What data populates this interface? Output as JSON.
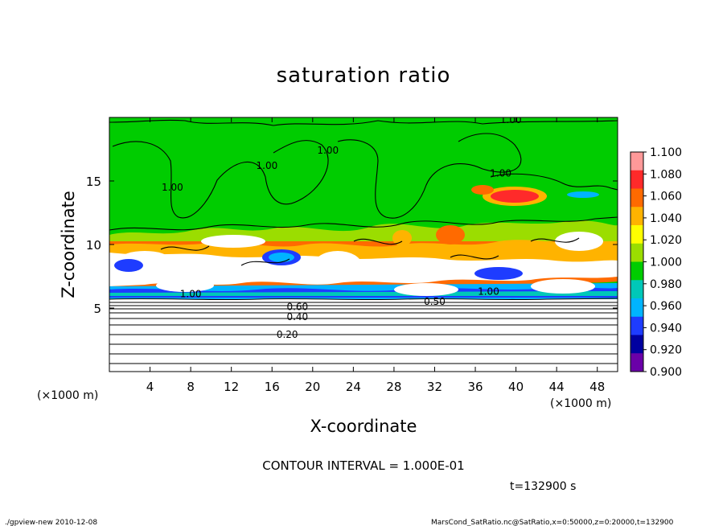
{
  "chart_data": {
    "type": "heatmap",
    "title": "saturation ratio",
    "xlabel": "X-coordinate",
    "ylabel": "Z-coordinate",
    "x_unit": "(×1000 m)",
    "y_unit": "(×1000 m)",
    "xlim": [
      0,
      50
    ],
    "ylim": [
      0,
      20
    ],
    "xticks": [
      4,
      8,
      12,
      16,
      20,
      24,
      28,
      32,
      36,
      40,
      44,
      48
    ],
    "yticks": [
      5,
      10,
      15
    ],
    "contour_interval_text": "CONTOUR INTERVAL = 1.000E-01",
    "contour_labels": [
      {
        "text": "1.00",
        "x": 39.5,
        "y": 19.8
      },
      {
        "text": "1.00",
        "x": 21.5,
        "y": 17.4
      },
      {
        "text": "1.00",
        "x": 15.5,
        "y": 16.2
      },
      {
        "text": "1.00",
        "x": 6.2,
        "y": 14.5
      },
      {
        "text": "1.00",
        "x": 38.5,
        "y": 15.6
      },
      {
        "text": "1.00",
        "x": 8.0,
        "y": 6.1
      },
      {
        "text": "1.00",
        "x": 37.3,
        "y": 6.3
      },
      {
        "text": "0.50",
        "x": 32.0,
        "y": 5.5
      },
      {
        "text": "0.60",
        "x": 18.5,
        "y": 5.1
      },
      {
        "text": "0.40",
        "x": 18.5,
        "y": 4.3
      },
      {
        "text": "0.20",
        "x": 17.5,
        "y": 2.9
      }
    ],
    "colorbar": {
      "levels": [
        "1.100",
        "1.080",
        "1.060",
        "1.040",
        "1.020",
        "1.000",
        "0.980",
        "0.960",
        "0.940",
        "0.920",
        "0.900"
      ],
      "colors": [
        "#ff9999",
        "#ff2a2a",
        "#ff6a00",
        "#ffb300",
        "#ffff00",
        "#9bdd00",
        "#00cc00",
        "#00c8b8",
        "#00b4ff",
        "#1e3cff",
        "#0000a0",
        "#6a00a8"
      ]
    },
    "grid": false,
    "legend": "colorbar-right"
  },
  "labels": {
    "time": "t=132900 s",
    "footer_left": "./gpview-new   2010-12-08",
    "footer_right": "MarsCond_SatRatio.nc@SatRatio,x=0:50000,z=0:20000,t=132900"
  }
}
